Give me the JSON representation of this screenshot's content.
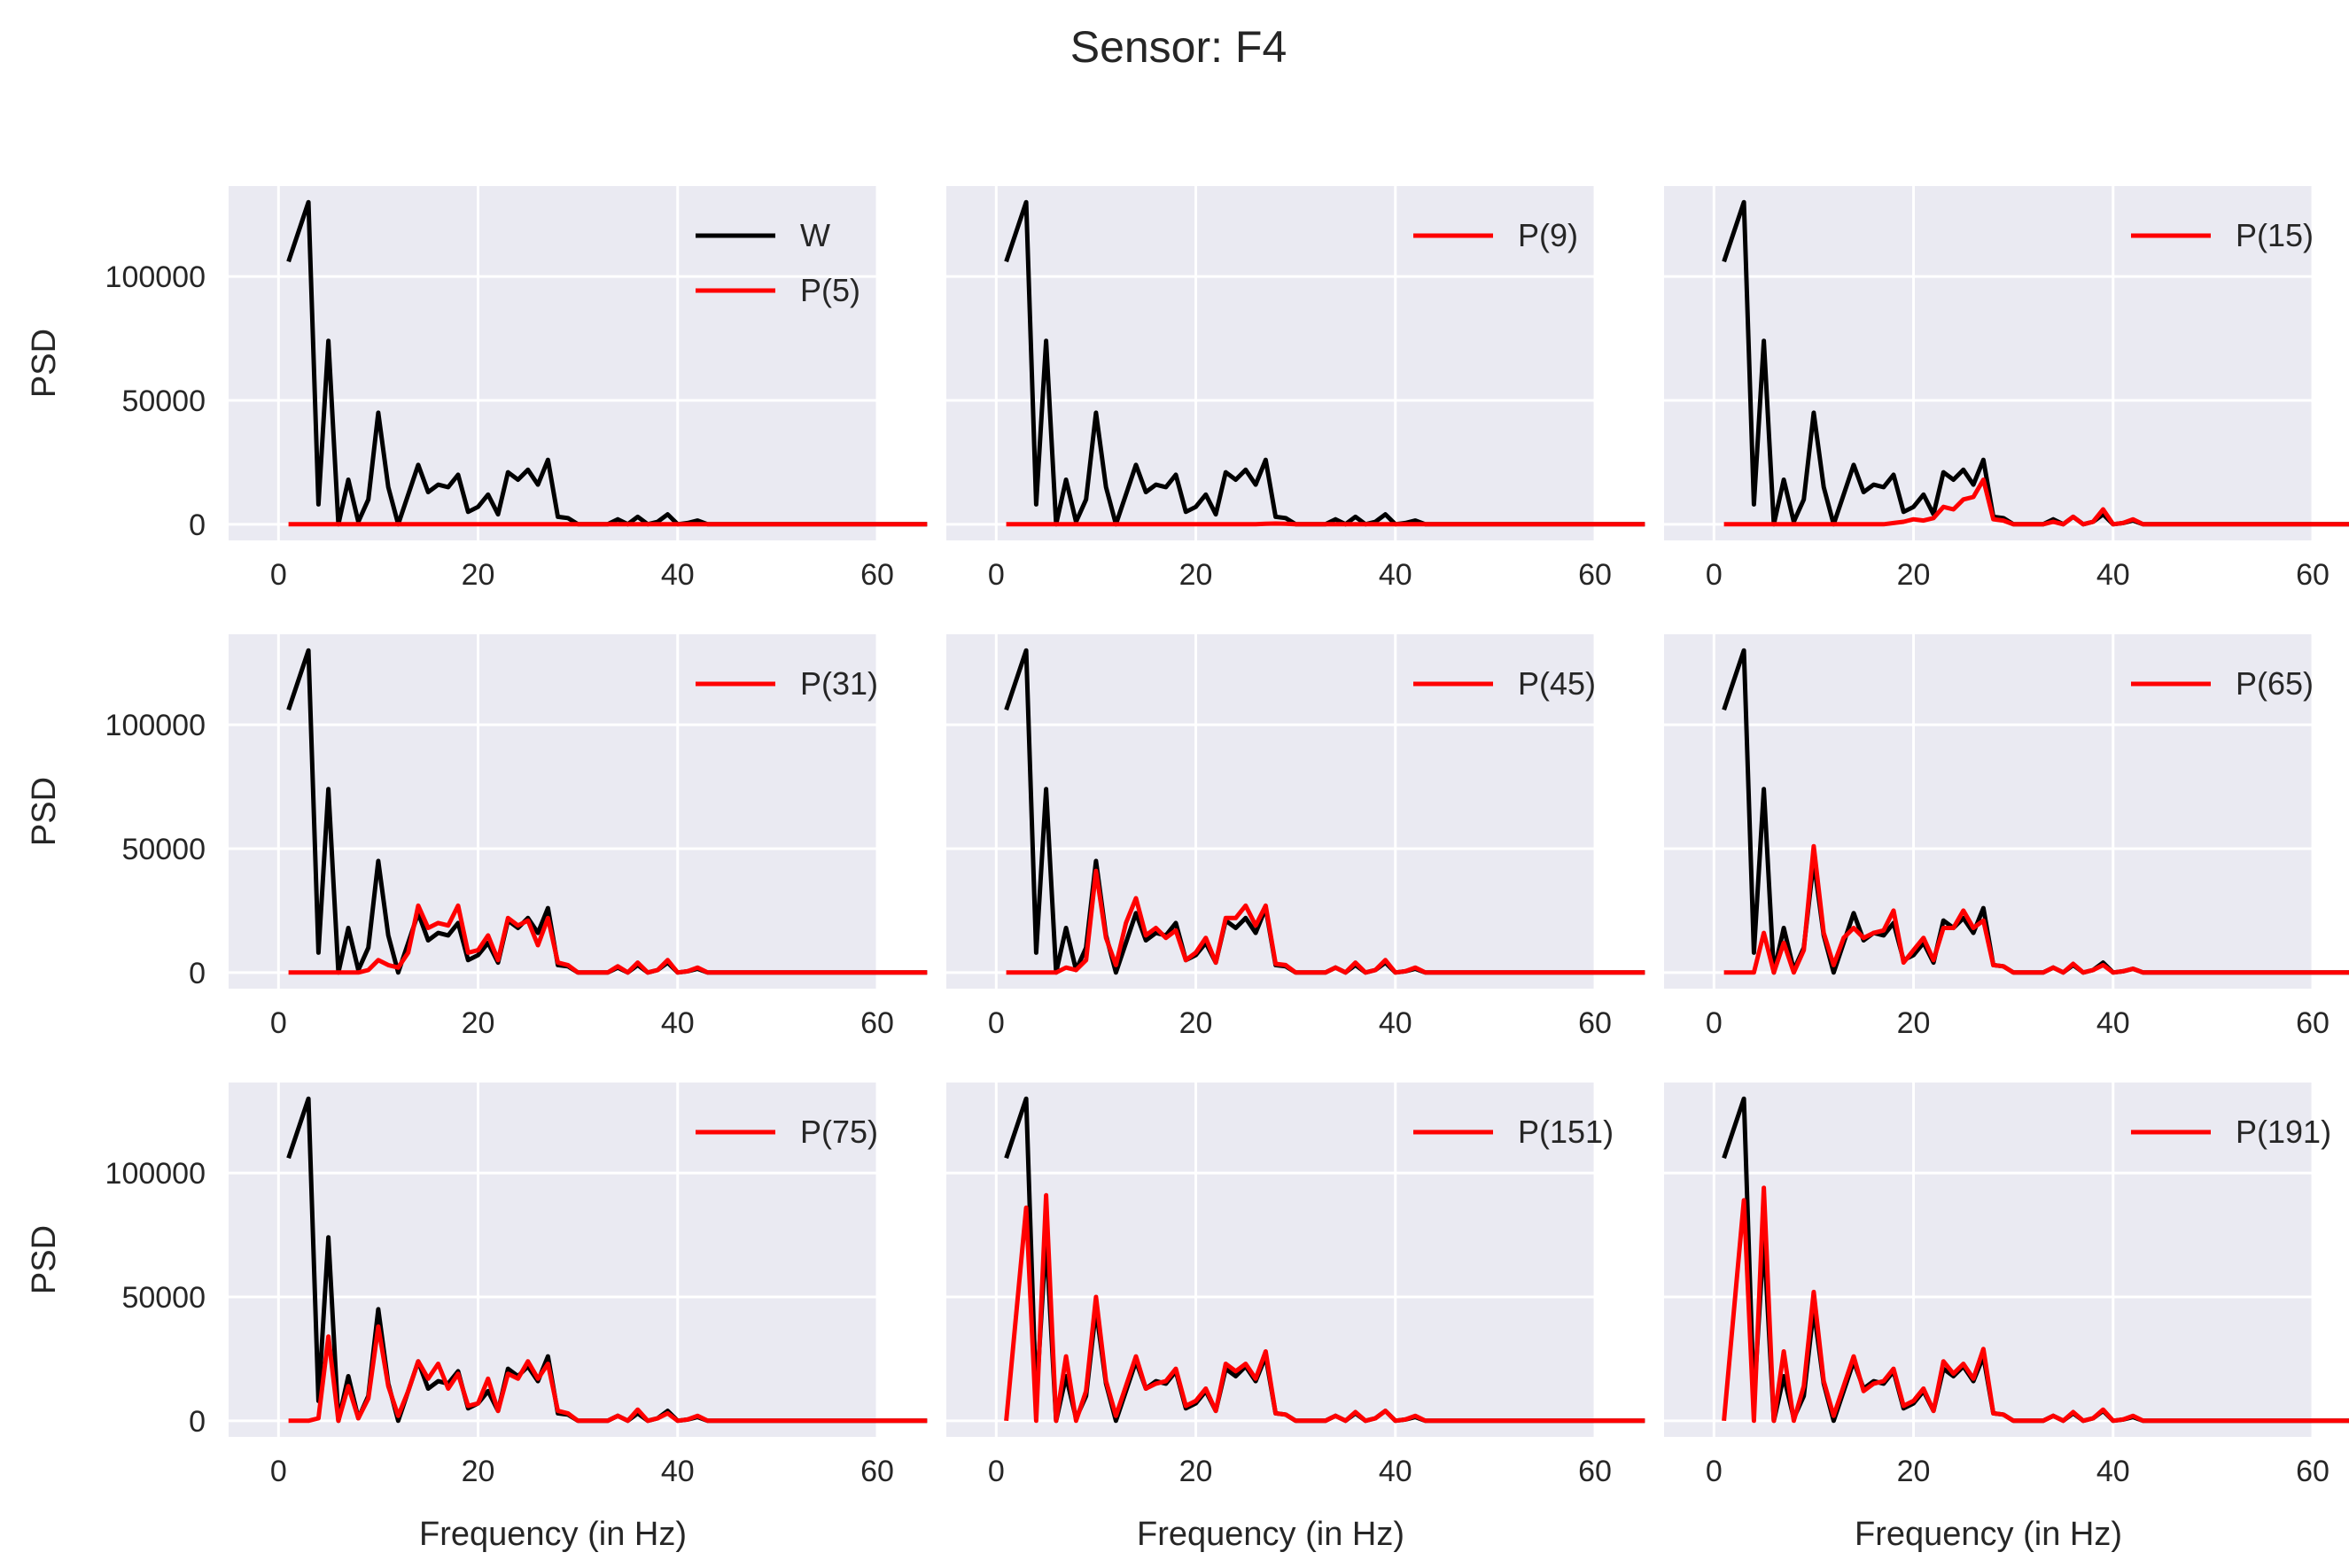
{
  "figure": {
    "title": "Sensor: F4",
    "xlabel": "Frequency (in Hz)",
    "ylabel": "PSD",
    "background": "#EAEAF2",
    "grid_color": "#FFFFFF",
    "baseline_color": "#000000",
    "comparison_color": "#FF0000"
  },
  "chart_data": {
    "type": "line",
    "grid": true,
    "title": "Sensor: F4",
    "xlabel": "Frequency (in Hz)",
    "ylabel": "PSD",
    "xlim": [
      -5,
      60
    ],
    "ylim": [
      -6500,
      136500
    ],
    "xticks": [
      0,
      20,
      40,
      60
    ],
    "yticks": [
      0,
      50000,
      100000
    ],
    "legend_placement": "top-right",
    "shared_x": [
      1,
      3,
      4,
      5,
      6,
      7,
      8,
      9,
      10,
      11,
      12,
      13,
      14,
      15,
      16,
      17,
      18,
      19,
      20,
      21,
      22,
      23,
      24,
      25,
      26,
      27,
      28,
      29,
      30,
      31,
      32,
      33,
      34,
      35,
      36,
      37,
      38,
      39,
      40,
      41,
      42,
      43,
      44,
      45,
      46,
      47,
      48,
      49,
      50,
      51,
      52,
      53,
      54,
      55,
      56,
      57,
      58,
      59,
      60,
      61,
      62,
      63,
      64,
      65
    ],
    "baseline": {
      "name": "W",
      "color": "#000000",
      "y": [
        106000,
        130000,
        8000,
        74000,
        0,
        18000,
        1000,
        10000,
        45000,
        15000,
        0,
        12000,
        24000,
        13000,
        16000,
        15000,
        20000,
        5000,
        7000,
        12000,
        4000,
        21000,
        18000,
        22000,
        16000,
        26000,
        3000,
        2500,
        0,
        0,
        0,
        0,
        2000,
        0,
        3000,
        0,
        1000,
        4000,
        0,
        500,
        1500,
        0,
        0,
        0,
        0,
        0,
        0,
        0,
        0,
        0,
        0,
        0,
        0,
        0,
        0,
        0,
        0,
        0,
        0,
        0,
        0,
        0,
        0,
        0
      ]
    },
    "panels": [
      {
        "legend": "P(5)",
        "show_baseline_legend": true,
        "y": [
          0,
          0,
          0,
          0,
          0,
          0,
          0,
          0,
          0,
          0,
          0,
          0,
          0,
          0,
          0,
          0,
          0,
          0,
          0,
          0,
          0,
          0,
          0,
          0,
          0,
          0,
          0,
          0,
          0,
          0,
          0,
          0,
          0,
          0,
          0,
          0,
          0,
          0,
          0,
          0,
          0,
          0,
          0,
          0,
          0,
          0,
          0,
          0,
          0,
          0,
          0,
          0,
          0,
          0,
          0,
          0,
          0,
          0,
          0,
          0,
          0,
          0,
          0,
          0
        ]
      },
      {
        "legend": "P(9)",
        "show_baseline_legend": false,
        "y": [
          0,
          0,
          0,
          0,
          0,
          0,
          0,
          0,
          0,
          0,
          0,
          0,
          0,
          0,
          0,
          0,
          0,
          0,
          0,
          0,
          0,
          0,
          0,
          0,
          0,
          200,
          300,
          200,
          0,
          0,
          0,
          0,
          0,
          0,
          0,
          0,
          0,
          0,
          0,
          0,
          0,
          0,
          0,
          0,
          0,
          0,
          0,
          0,
          0,
          0,
          0,
          0,
          0,
          0,
          0,
          0,
          0,
          0,
          0,
          0,
          0,
          0,
          0,
          0
        ]
      },
      {
        "legend": "P(15)",
        "show_baseline_legend": false,
        "y": [
          0,
          0,
          0,
          0,
          0,
          0,
          0,
          0,
          0,
          0,
          0,
          0,
          0,
          0,
          0,
          0,
          500,
          1000,
          2000,
          1500,
          2500,
          7000,
          6000,
          10000,
          11000,
          18000,
          2000,
          1500,
          0,
          0,
          0,
          0,
          1000,
          0,
          3000,
          0,
          1000,
          6000,
          0,
          500,
          2000,
          0,
          0,
          0,
          0,
          0,
          0,
          0,
          0,
          0,
          0,
          0,
          0,
          0,
          0,
          0,
          0,
          0,
          0,
          0,
          0,
          0,
          0,
          0
        ]
      },
      {
        "legend": "P(31)",
        "show_baseline_legend": false,
        "y": [
          0,
          0,
          0,
          0,
          0,
          0,
          0,
          1000,
          5000,
          3000,
          2000,
          8000,
          27000,
          18000,
          20000,
          19000,
          27000,
          8000,
          9000,
          15000,
          5000,
          22000,
          19000,
          21000,
          11000,
          22000,
          4000,
          3000,
          0,
          0,
          0,
          0,
          2500,
          0,
          4000,
          0,
          1000,
          5000,
          0,
          500,
          2000,
          0,
          0,
          0,
          0,
          0,
          0,
          0,
          0,
          0,
          0,
          0,
          0,
          0,
          0,
          0,
          0,
          0,
          0,
          0,
          0,
          0,
          0,
          0
        ]
      },
      {
        "legend": "P(45)",
        "show_baseline_legend": false,
        "y": [
          0,
          0,
          0,
          0,
          0,
          2000,
          1000,
          5000,
          41000,
          14000,
          3000,
          20000,
          30000,
          15000,
          18000,
          14000,
          17000,
          5000,
          8000,
          14000,
          4000,
          22000,
          22000,
          27000,
          19000,
          27000,
          3500,
          3000,
          0,
          0,
          0,
          0,
          2000,
          0,
          4000,
          0,
          1000,
          5000,
          0,
          500,
          2000,
          0,
          0,
          0,
          0,
          0,
          0,
          0,
          0,
          0,
          0,
          0,
          0,
          0,
          0,
          0,
          0,
          0,
          0,
          0,
          0,
          0,
          0,
          0
        ]
      },
      {
        "legend": "P(65)",
        "show_baseline_legend": false,
        "y": [
          0,
          0,
          0,
          16000,
          0,
          12000,
          0,
          9000,
          51000,
          16000,
          3000,
          14000,
          18000,
          14000,
          16000,
          17000,
          25000,
          4000,
          9000,
          14000,
          5000,
          18000,
          18000,
          25000,
          18000,
          21000,
          3000,
          2500,
          0,
          0,
          0,
          0,
          2000,
          0,
          3500,
          0,
          1000,
          3000,
          0,
          500,
          1500,
          0,
          0,
          0,
          0,
          0,
          0,
          0,
          0,
          0,
          0,
          0,
          0,
          0,
          0,
          0,
          0,
          0,
          0,
          0,
          0,
          0,
          0,
          0
        ]
      },
      {
        "legend": "P(75)",
        "show_baseline_legend": false,
        "y": [
          0,
          0,
          1000,
          34000,
          0,
          14000,
          1000,
          9000,
          38000,
          14000,
          2000,
          12000,
          24000,
          17000,
          23000,
          13000,
          19000,
          6000,
          7000,
          17000,
          4000,
          19000,
          17000,
          24000,
          17000,
          23000,
          4000,
          3000,
          0,
          0,
          0,
          0,
          2000,
          0,
          4500,
          0,
          1000,
          3000,
          0,
          500,
          2000,
          0,
          0,
          0,
          0,
          0,
          0,
          0,
          0,
          0,
          0,
          0,
          0,
          0,
          0,
          0,
          0,
          0,
          0,
          0,
          0,
          0,
          0,
          0
        ]
      },
      {
        "legend": "P(151)",
        "show_baseline_legend": false,
        "y": [
          0,
          86000,
          0,
          91000,
          0,
          26000,
          0,
          12000,
          50000,
          16000,
          2000,
          14000,
          26000,
          13000,
          15000,
          16000,
          21000,
          6000,
          8000,
          13000,
          4000,
          23000,
          20000,
          23000,
          17000,
          28000,
          3000,
          2500,
          0,
          0,
          0,
          0,
          2000,
          0,
          3500,
          0,
          1000,
          4000,
          0,
          500,
          2000,
          0,
          0,
          0,
          0,
          0,
          0,
          0,
          0,
          0,
          0,
          0,
          0,
          0,
          0,
          0,
          0,
          0,
          0,
          0,
          0,
          0,
          0,
          0
        ]
      },
      {
        "legend": "P(191)",
        "show_baseline_legend": false,
        "y": [
          0,
          89000,
          0,
          94000,
          0,
          28000,
          0,
          14000,
          52000,
          16000,
          2000,
          14000,
          26000,
          12000,
          15000,
          16000,
          21000,
          6000,
          8000,
          13000,
          4000,
          24000,
          19000,
          23000,
          17000,
          29000,
          3000,
          2500,
          0,
          0,
          0,
          0,
          2000,
          0,
          3500,
          0,
          1000,
          4500,
          0,
          500,
          2000,
          0,
          0,
          0,
          0,
          0,
          0,
          0,
          0,
          0,
          0,
          0,
          0,
          0,
          0,
          0,
          0,
          0,
          0,
          0,
          0,
          0,
          0,
          0
        ]
      }
    ]
  }
}
